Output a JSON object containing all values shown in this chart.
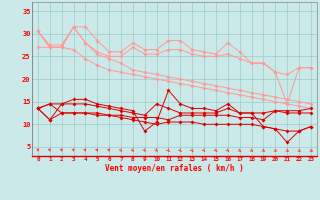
{
  "x": [
    0,
    1,
    2,
    3,
    4,
    5,
    6,
    7,
    8,
    9,
    10,
    11,
    12,
    13,
    14,
    15,
    16,
    17,
    18,
    19,
    20,
    21,
    22,
    23
  ],
  "line1": [
    30.5,
    27.5,
    27.5,
    31.5,
    31.5,
    28.5,
    26.0,
    26.0,
    28.0,
    26.5,
    26.5,
    28.5,
    28.5,
    26.5,
    26.0,
    25.5,
    28.0,
    26.0,
    23.5,
    23.5,
    21.5,
    14.5,
    22.5,
    22.5
  ],
  "line2": [
    30.5,
    27.0,
    27.0,
    31.5,
    28.0,
    26.0,
    25.0,
    25.0,
    27.0,
    25.5,
    25.5,
    26.5,
    26.5,
    25.5,
    25.0,
    25.0,
    25.5,
    24.5,
    23.5,
    23.5,
    21.5,
    21.0,
    22.5,
    22.5
  ],
  "line3_upper": [
    30.5,
    27.0,
    27.0,
    31.5,
    28.0,
    25.5,
    24.5,
    23.5,
    22.0,
    21.5,
    21.0,
    20.5,
    20.0,
    19.5,
    19.0,
    18.5,
    18.0,
    17.5,
    17.0,
    16.5,
    16.0,
    15.5,
    15.0,
    14.5
  ],
  "line3_lower": [
    27.0,
    27.0,
    27.0,
    26.5,
    24.5,
    23.0,
    22.0,
    21.5,
    21.0,
    20.5,
    20.0,
    19.5,
    19.0,
    18.5,
    18.0,
    17.5,
    17.0,
    16.5,
    16.0,
    15.5,
    15.0,
    14.5,
    14.0,
    13.5
  ],
  "line4": [
    13.5,
    11.0,
    14.5,
    15.5,
    15.5,
    14.5,
    14.0,
    13.5,
    13.0,
    8.5,
    10.5,
    17.5,
    14.5,
    13.5,
    13.5,
    13.0,
    14.5,
    12.5,
    12.5,
    9.5,
    9.0,
    6.0,
    8.5,
    9.5
  ],
  "line5": [
    13.5,
    14.5,
    14.5,
    14.5,
    14.5,
    14.0,
    13.5,
    13.0,
    12.5,
    12.0,
    14.5,
    13.5,
    12.5,
    12.5,
    12.5,
    12.5,
    13.5,
    12.5,
    12.5,
    12.5,
    13.0,
    12.5,
    12.5,
    12.5
  ],
  "line6": [
    13.5,
    14.5,
    12.5,
    12.5,
    12.5,
    12.5,
    12.0,
    12.0,
    11.5,
    11.5,
    11.5,
    11.0,
    12.0,
    12.0,
    12.0,
    12.0,
    12.0,
    11.5,
    11.5,
    11.0,
    13.0,
    13.0,
    13.0,
    13.5
  ],
  "line7": [
    13.5,
    11.0,
    12.5,
    12.5,
    12.5,
    12.0,
    12.0,
    11.5,
    11.0,
    10.5,
    10.0,
    10.5,
    10.5,
    10.5,
    10.0,
    10.0,
    10.0,
    10.0,
    10.0,
    9.5,
    9.0,
    8.5,
    8.5,
    9.5
  ],
  "bg_color": "#cce9e9",
  "grid_color": "#99cccc",
  "line_color_light": "#ff9999",
  "line_color_dark": "#dd0000",
  "arrow_color": "#ff3333",
  "xlabel": "Vent moyen/en rafales ( km/h )",
  "ylim": [
    3,
    37
  ],
  "yticks": [
    5,
    10,
    15,
    20,
    25,
    30,
    35
  ],
  "xticks": [
    0,
    1,
    2,
    3,
    4,
    5,
    6,
    7,
    8,
    9,
    10,
    11,
    12,
    13,
    14,
    15,
    16,
    17,
    18,
    19,
    20,
    21,
    22,
    23
  ],
  "arrow_angles": [
    0,
    5,
    5,
    5,
    10,
    10,
    10,
    15,
    15,
    15,
    15,
    20,
    20,
    20,
    20,
    25,
    25,
    30,
    30,
    35,
    35,
    40,
    40,
    45
  ]
}
